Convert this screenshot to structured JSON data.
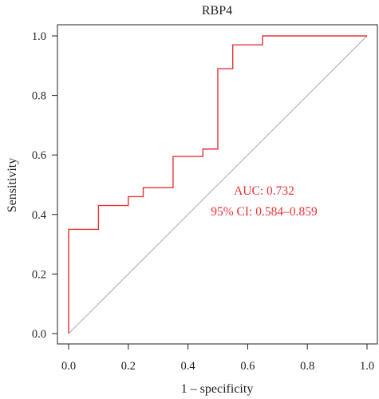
{
  "chart_data": {
    "type": "line",
    "title": "RBP4",
    "xlabel": "1 – specificity",
    "ylabel": "Sensitivity",
    "xlim": [
      0,
      1
    ],
    "ylim": [
      0,
      1
    ],
    "xticks": [
      "0.0",
      "0.2",
      "0.4",
      "0.6",
      "0.8",
      "1.0"
    ],
    "yticks": [
      "0.0",
      "0.2",
      "0.4",
      "0.6",
      "0.8",
      "1.0"
    ],
    "grid": false,
    "series": [
      {
        "color": "#e8333a",
        "step": true,
        "x": [
          0.0,
          0.0,
          0.1,
          0.1,
          0.2,
          0.2,
          0.25,
          0.25,
          0.35,
          0.35,
          0.45,
          0.45,
          0.5,
          0.5,
          0.55,
          0.55,
          0.65,
          0.65,
          1.0
        ],
        "y": [
          0.0,
          0.35,
          0.35,
          0.43,
          0.43,
          0.46,
          0.46,
          0.49,
          0.49,
          0.595,
          0.595,
          0.62,
          0.62,
          0.89,
          0.89,
          0.97,
          0.97,
          1.0,
          1.0
        ]
      }
    ],
    "reference_line": {
      "x": [
        0,
        1
      ],
      "y": [
        0,
        1
      ],
      "color": "#aaaaaa"
    },
    "annotations": [
      {
        "text": "AUC: 0.732",
        "color": "#e8333a"
      },
      {
        "text": "95% CI: 0.584–0.859",
        "color": "#e8333a"
      }
    ]
  }
}
